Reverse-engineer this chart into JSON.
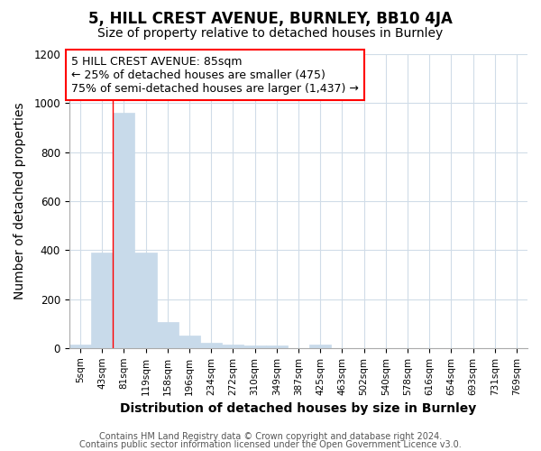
{
  "title1": "5, HILL CREST AVENUE, BURNLEY, BB10 4JA",
  "title2": "Size of property relative to detached houses in Burnley",
  "xlabel": "Distribution of detached houses by size in Burnley",
  "ylabel": "Number of detached properties",
  "categories": [
    "5sqm",
    "43sqm",
    "81sqm",
    "119sqm",
    "158sqm",
    "196sqm",
    "234sqm",
    "272sqm",
    "310sqm",
    "349sqm",
    "387sqm",
    "425sqm",
    "463sqm",
    "502sqm",
    "540sqm",
    "578sqm",
    "616sqm",
    "654sqm",
    "693sqm",
    "731sqm",
    "769sqm"
  ],
  "values": [
    15,
    390,
    960,
    390,
    105,
    50,
    20,
    15,
    10,
    10,
    0,
    15,
    0,
    0,
    0,
    0,
    0,
    0,
    0,
    0,
    0
  ],
  "bar_color": "#c8daea",
  "bar_edge_color": "#c8daea",
  "red_line_x": 1.5,
  "ylim": [
    0,
    1200
  ],
  "yticks": [
    0,
    200,
    400,
    600,
    800,
    1000,
    1200
  ],
  "annotation_box_text": "5 HILL CREST AVENUE: 85sqm\n← 25% of detached houses are smaller (475)\n75% of semi-detached houses are larger (1,437) →",
  "footer1": "Contains HM Land Registry data © Crown copyright and database right 2024.",
  "footer2": "Contains public sector information licensed under the Open Government Licence v3.0.",
  "bg_color": "#ffffff",
  "plot_bg_color": "#ffffff",
  "grid_color": "#d0dce8",
  "title1_fontsize": 12,
  "title2_fontsize": 10,
  "axis_label_fontsize": 10,
  "tick_fontsize": 7.5,
  "annotation_fontsize": 9,
  "footer_fontsize": 7
}
